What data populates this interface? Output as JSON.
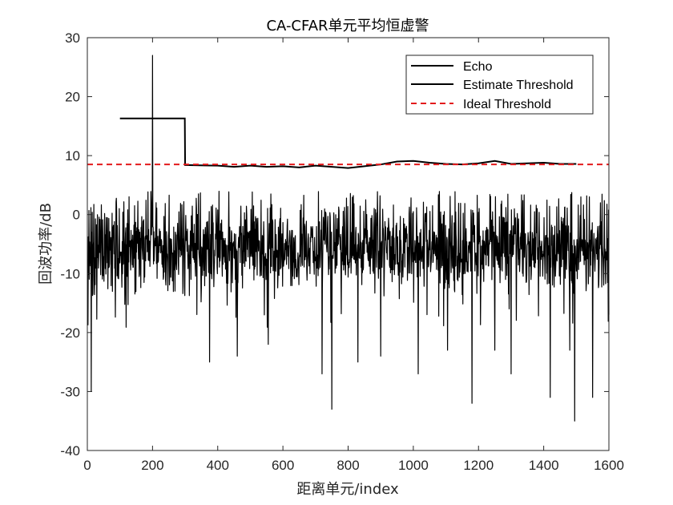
{
  "chart_data": {
    "type": "line",
    "title": "CA-CFAR单元平均恒虚警",
    "xlabel": "距离单元/index",
    "ylabel": "回波功率/dB",
    "xlim": [
      0,
      1600
    ],
    "ylim": [
      -40,
      30
    ],
    "xticks": [
      0,
      200,
      400,
      600,
      800,
      1000,
      1200,
      1400,
      1600
    ],
    "yticks": [
      -40,
      -30,
      -20,
      -10,
      0,
      10,
      20,
      30
    ],
    "xtick_labels": [
      "0",
      "200",
      "400",
      "600",
      "800",
      "1000",
      "1200",
      "1400",
      "1600"
    ],
    "ytick_labels": [
      "-40",
      "-30",
      "-20",
      "-10",
      "0",
      "10",
      "20",
      "30"
    ],
    "grid": false,
    "legend_position": "top-right",
    "series": [
      {
        "name": "Echo",
        "color": "#000000",
        "style": "solid",
        "x_range": [
          1,
          1600
        ],
        "y_range_approx": [
          -35,
          5
        ],
        "typical_mean": -6,
        "target": {
          "x": 200,
          "y": 27
        },
        "notable_dips": [
          {
            "x": 12,
            "y": -30
          },
          {
            "x": 200,
            "y": -23
          },
          {
            "x": 375,
            "y": -25
          },
          {
            "x": 460,
            "y": -24
          },
          {
            "x": 555,
            "y": -22
          },
          {
            "x": 720,
            "y": -27
          },
          {
            "x": 750,
            "y": -33
          },
          {
            "x": 830,
            "y": -25
          },
          {
            "x": 900,
            "y": -24
          },
          {
            "x": 1015,
            "y": -27
          },
          {
            "x": 1105,
            "y": -23
          },
          {
            "x": 1180,
            "y": -32
          },
          {
            "x": 1250,
            "y": -23
          },
          {
            "x": 1300,
            "y": -27
          },
          {
            "x": 1420,
            "y": -31
          },
          {
            "x": 1480,
            "y": -23
          },
          {
            "x": 1495,
            "y": -35
          },
          {
            "x": 1550,
            "y": -31
          }
        ]
      },
      {
        "name": "Estimate Threshold",
        "color": "#000000",
        "style": "solid",
        "points": [
          [
            100,
            16.3
          ],
          [
            299,
            16.3
          ],
          [
            300,
            8.4
          ],
          [
            400,
            8.3
          ],
          [
            450,
            8.1
          ],
          [
            500,
            8.3
          ],
          [
            550,
            8.1
          ],
          [
            600,
            8.2
          ],
          [
            650,
            8.0
          ],
          [
            700,
            8.3
          ],
          [
            750,
            8.1
          ],
          [
            800,
            7.9
          ],
          [
            850,
            8.2
          ],
          [
            900,
            8.5
          ],
          [
            950,
            9.0
          ],
          [
            1000,
            9.1
          ],
          [
            1050,
            8.8
          ],
          [
            1100,
            8.6
          ],
          [
            1150,
            8.5
          ],
          [
            1200,
            8.7
          ],
          [
            1250,
            9.1
          ],
          [
            1300,
            8.6
          ],
          [
            1350,
            8.7
          ],
          [
            1400,
            8.8
          ],
          [
            1450,
            8.6
          ],
          [
            1500,
            8.6
          ]
        ]
      },
      {
        "name": "Ideal Threshold",
        "color": "#e31a1c",
        "style": "dashed",
        "points": [
          [
            0,
            8.5
          ],
          [
            1600,
            8.5
          ]
        ]
      }
    ]
  }
}
